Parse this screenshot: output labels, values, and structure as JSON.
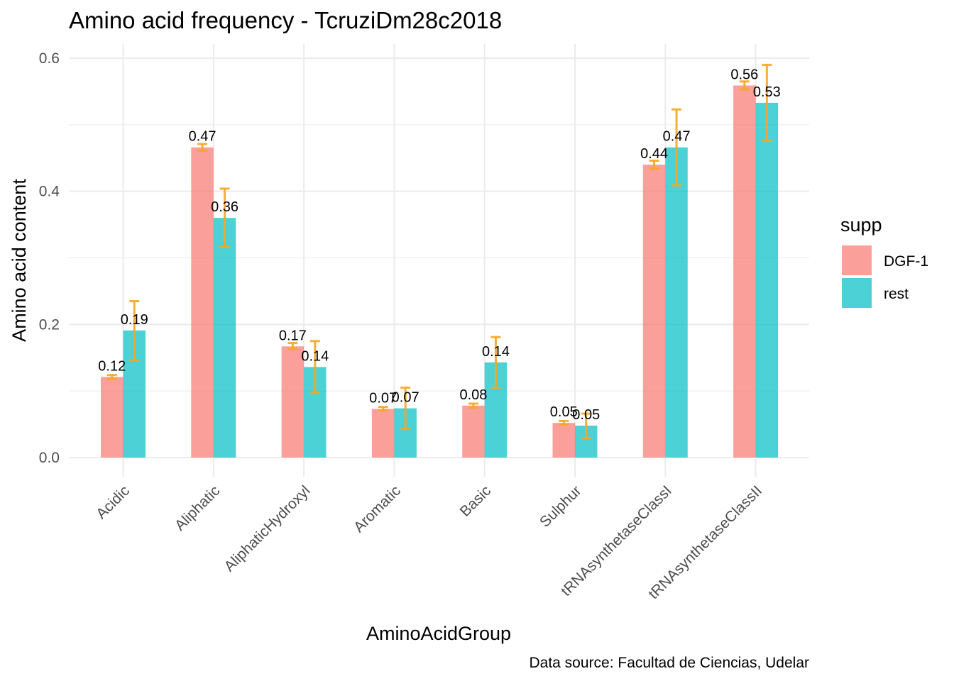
{
  "chart_data": {
    "type": "bar",
    "title": "Amino acid frequency - TcruziDm28c2018",
    "xlabel": "AminoAcidGroup",
    "ylabel": "Amino acid content",
    "caption": "Data source: Facultad de Ciencias, Udelar",
    "ylim": [
      0,
      0.6
    ],
    "yticks": [
      0.0,
      0.2,
      0.4,
      0.6
    ],
    "ytick_labels": [
      "0.0",
      "0.2",
      "0.4",
      "0.6"
    ],
    "grid": true,
    "legend": {
      "title": "supp",
      "position": "right"
    },
    "categories": [
      "Acidic",
      "Aliphatic",
      "AliphaticHydroxyl",
      "Aromatic",
      "Basic",
      "Sulphur",
      "tRNAsynthetaseClassI",
      "tRNAsynthetaseClassII"
    ],
    "series": [
      {
        "name": "DGF-1",
        "color": "#F8766D",
        "values": [
          0.121,
          0.466,
          0.167,
          0.073,
          0.078,
          0.052,
          0.44,
          0.559
        ],
        "labels": [
          "0.12",
          "0.47",
          "0.17",
          "0.07",
          "0.08",
          "0.05",
          "0.44",
          "0.56"
        ],
        "err_low": [
          0.118,
          0.461,
          0.163,
          0.071,
          0.075,
          0.05,
          0.434,
          0.553
        ],
        "err_high": [
          0.124,
          0.471,
          0.172,
          0.076,
          0.081,
          0.055,
          0.446,
          0.565
        ]
      },
      {
        "name": "rest",
        "color": "#00BFC4",
        "values": [
          0.191,
          0.36,
          0.136,
          0.074,
          0.143,
          0.048,
          0.466,
          0.533
        ],
        "labels": [
          "0.19",
          "0.36",
          "0.14",
          "0.07",
          "0.14",
          "0.05",
          "0.47",
          "0.53"
        ],
        "err_low": [
          0.146,
          0.316,
          0.097,
          0.043,
          0.105,
          0.029,
          0.409,
          0.476
        ],
        "err_high": [
          0.235,
          0.404,
          0.175,
          0.105,
          0.181,
          0.066,
          0.523,
          0.59
        ]
      }
    ],
    "errorbar_color": "#F5A623"
  }
}
